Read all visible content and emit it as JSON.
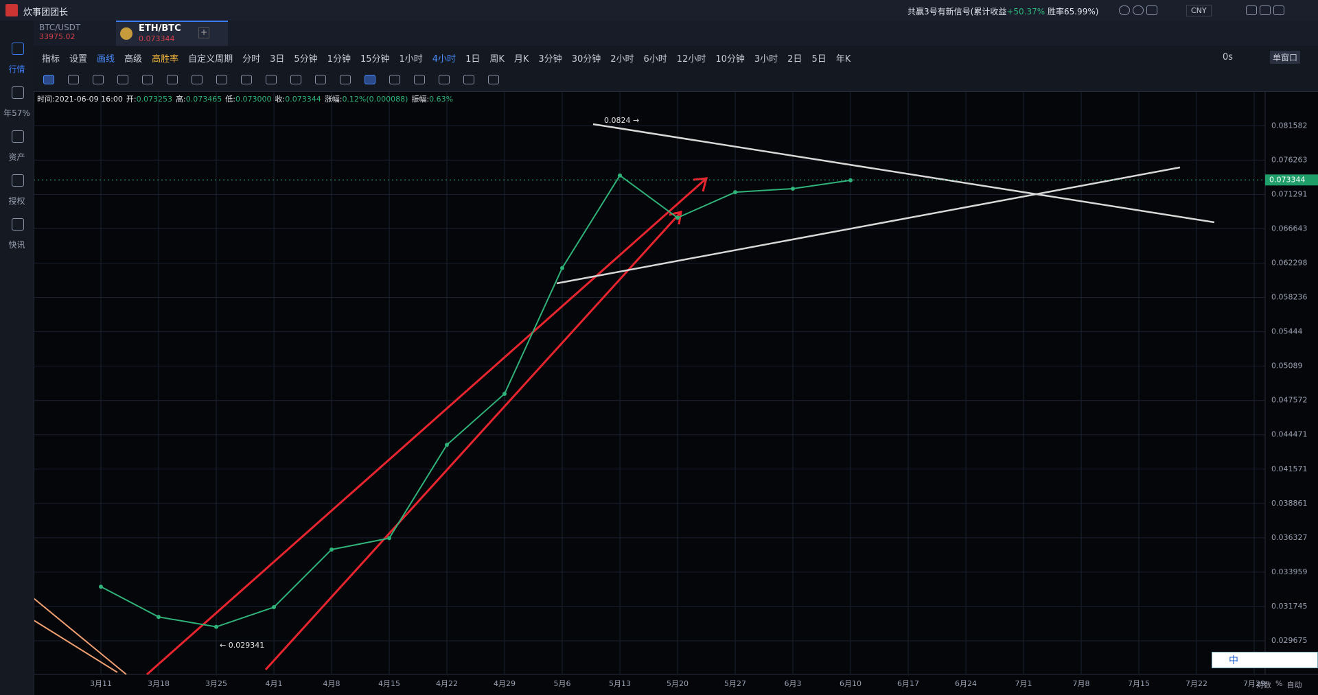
{
  "top_bar": {
    "user": "炊事团团长",
    "signal_text": "共赢3号有新信号(累计收益",
    "signal_gain": "+50.37%",
    "win_rate": "胜率65.99%)",
    "currency": "CNY"
  },
  "tabs": [
    {
      "pair": "BTC/USDT",
      "price": "33975.02"
    },
    {
      "pair": "ETH/BTC",
      "price": "0.073344"
    }
  ],
  "sidebar": [
    "行情",
    "年57%",
    "资产",
    "授权",
    "快讯"
  ],
  "toolbar": {
    "tools": [
      "指标",
      "设置",
      "画线",
      "高级",
      "高胜率",
      "自定义周期"
    ],
    "periods": [
      "分时",
      "3日",
      "5分钟",
      "1分钟",
      "15分钟",
      "1小时",
      "4小时",
      "1日",
      "周K",
      "月K",
      "3分钟",
      "30分钟",
      "2小时",
      "6小时",
      "12小时",
      "10分钟",
      "3小时",
      "2日",
      "5日",
      "年K"
    ],
    "active_period": "4小时",
    "countdown": "0s",
    "window": "单窗口"
  },
  "info_bar": [
    "时间:2021-06-09 16:00",
    "开:",
    "0.073253",
    "高:",
    "0.073465",
    "低:",
    "0.073000",
    "收:",
    "0.073344",
    "涨幅:",
    "0.12%(0.000088)",
    "振幅:",
    "0.63%"
  ],
  "chart_data": {
    "type": "line",
    "categories": [
      "3月11",
      "3月18",
      "3月25",
      "4月1",
      "4月8",
      "4月15",
      "4月22",
      "4月29",
      "5月6",
      "5月13",
      "5月20",
      "5月27",
      "6月3",
      "6月10",
      "6月17",
      "6月24",
      "7月1",
      "7月8",
      "7月15",
      "7月22",
      "7月29"
    ],
    "values": [
      0.033,
      0.0311,
      0.0305,
      0.0317,
      0.0355,
      0.0363,
      0.0436,
      0.0482,
      0.0617,
      0.074,
      0.0681,
      0.0716,
      0.0721,
      0.0733,
      null,
      null,
      null,
      null,
      null,
      null,
      null
    ],
    "color": "#2fb37a",
    "log_scale": true,
    "grid": true,
    "ylim": [
      0.02778,
      0.0873
    ],
    "yticks": [
      0.029675,
      0.031745,
      0.033959,
      0.036327,
      0.038861,
      0.041571,
      0.044471,
      0.047572,
      0.05089,
      0.05444,
      0.058236,
      0.062298,
      0.066643,
      0.071291,
      0.076263,
      0.081582
    ],
    "last_price": 0.073344,
    "high_label": "0.0824 →",
    "low_label": "← 0.029341"
  },
  "axis_controls": [
    "对数",
    "%",
    "自动"
  ],
  "widget": "中"
}
